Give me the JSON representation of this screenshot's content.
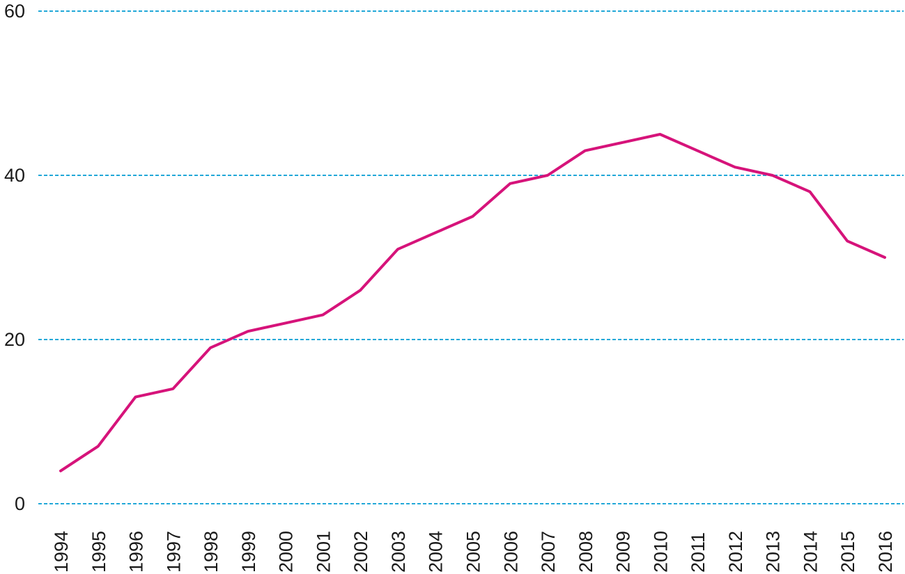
{
  "chart_data": {
    "type": "line",
    "title": "",
    "xlabel": "",
    "ylabel": "",
    "categories": [
      "1994",
      "1995",
      "1996",
      "1997",
      "1998",
      "1999",
      "2000",
      "2001",
      "2002",
      "2003",
      "2004",
      "2005",
      "2006",
      "2007",
      "2008",
      "2009",
      "2010",
      "2011",
      "2012",
      "2013",
      "2014",
      "2015",
      "2016"
    ],
    "series": [
      {
        "values": [
          4,
          7,
          13,
          14,
          19,
          21,
          22,
          23,
          26,
          31,
          33,
          35,
          39,
          40,
          43,
          44,
          45,
          43,
          41,
          40,
          38,
          32,
          30
        ]
      }
    ],
    "ylim": [
      0,
      60
    ],
    "yticks": [
      0,
      20,
      40,
      60
    ],
    "grid": true,
    "colors": {
      "line": "#d6137a",
      "grid": "#22a8d8"
    }
  }
}
